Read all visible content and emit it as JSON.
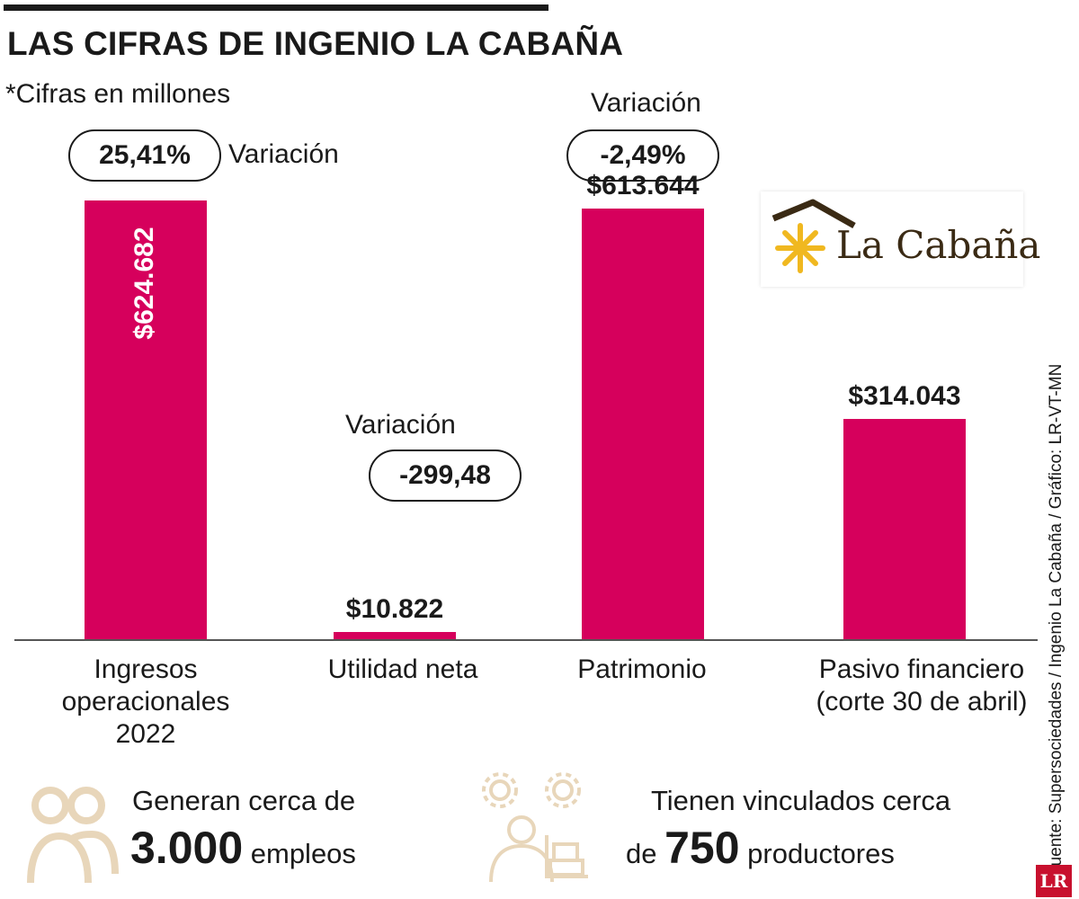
{
  "title": "LAS CIFRAS DE INGENIO LA CABAÑA",
  "subtitle": "*Cifras en millones",
  "colors": {
    "bar": "#d6005c",
    "text": "#1a1a1a",
    "logo_star": "#f0b820",
    "logo_roof": "#3a2a14"
  },
  "chart_data": {
    "type": "bar",
    "categories": [
      "Ingresos operacionales 2022",
      "Utilidad neta",
      "Patrimonio",
      "Pasivo financiero (corte 30 de abril)"
    ],
    "values": [
      624682,
      10822,
      613644,
      314043
    ],
    "value_labels": [
      "$624.682",
      "$10.822",
      "$613.644",
      "$314.043"
    ],
    "variation_label": "Variación",
    "variations": [
      "25,41%",
      "-299,48",
      "-2,49%",
      null
    ],
    "ylim": [
      0,
      640000
    ],
    "grid": false
  },
  "category_lines": [
    [
      "Ingresos",
      "operacionales",
      "2022"
    ],
    [
      "Utilidad neta"
    ],
    [
      "Patrimonio"
    ],
    [
      "Pasivo financiero",
      "(corte 30 de abril)"
    ]
  ],
  "logo": {
    "text": "La Cabaña"
  },
  "source": "Fuente: Supersociedades / Ingenio La Cabaña / Gráfico: LR-VT-MN",
  "brand_badge": "LR",
  "stats": [
    {
      "icon": "people-icon",
      "line1": "Generan cerca de",
      "big": "3.000",
      "small": "empleos"
    },
    {
      "icon": "worker-gears-icon",
      "line1": "Tienen vinculados cerca",
      "prefix": "de",
      "big": "750",
      "small": "productores"
    }
  ]
}
